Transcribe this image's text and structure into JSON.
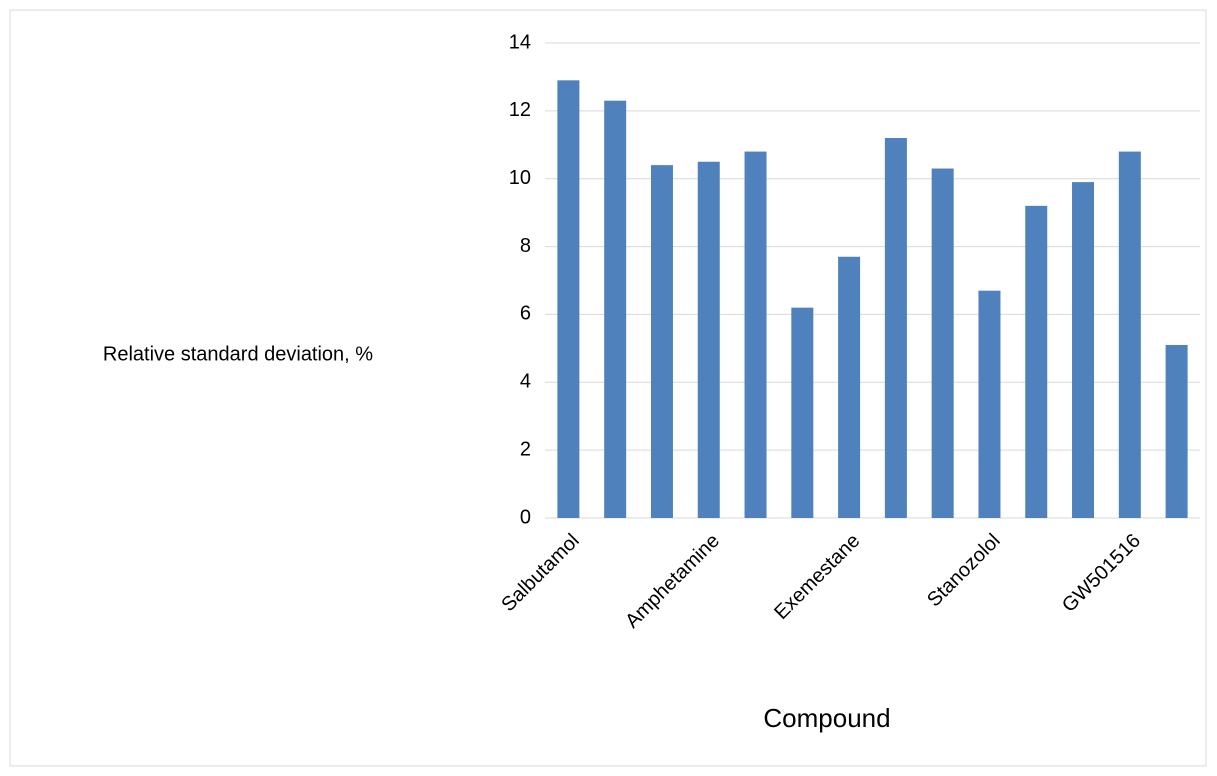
{
  "chart_data": {
    "type": "bar",
    "categories": [
      "Salbutamol",
      null,
      null,
      "Amphetamine",
      null,
      null,
      "Exemestane",
      null,
      null,
      "Stanozolol",
      null,
      null,
      "GW501516",
      null
    ],
    "values": [
      12.9,
      12.3,
      10.4,
      10.5,
      10.8,
      6.2,
      7.7,
      11.2,
      10.3,
      6.7,
      9.2,
      9.9,
      10.8,
      5.1
    ],
    "color": "#4f81bd",
    "ylabel": "Relative standard deviation, %",
    "xlabel": "Compound",
    "ylim": [
      0,
      14
    ],
    "yticks": [
      0,
      2,
      4,
      6,
      8,
      10,
      12,
      14
    ],
    "grid": true
  }
}
